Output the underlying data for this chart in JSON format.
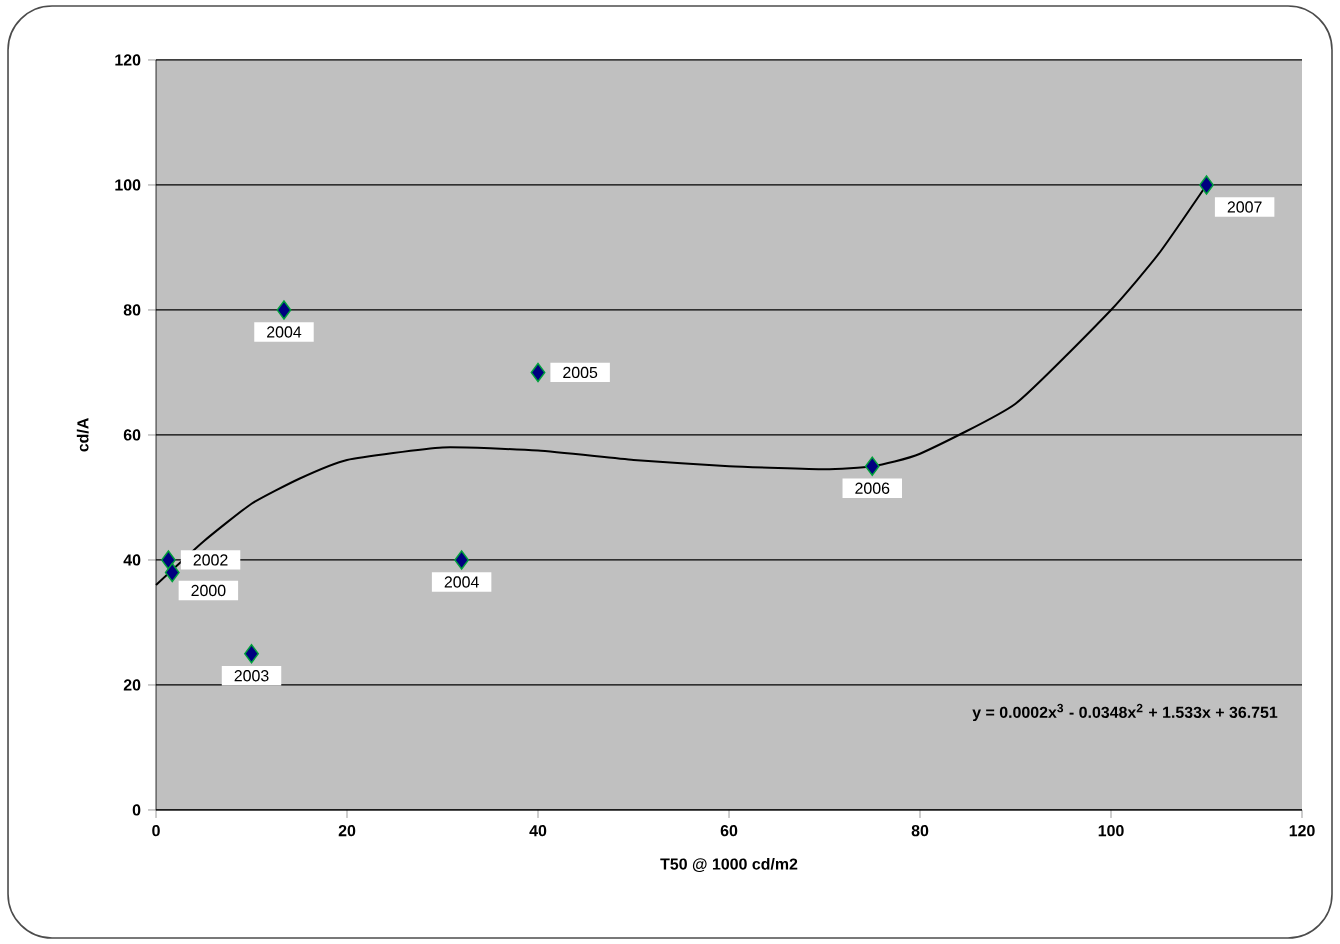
{
  "chart_data": {
    "type": "scatter",
    "xlabel": "T50 @ 1000 cd/m2",
    "ylabel": "cd/A",
    "xlim": [
      0,
      120
    ],
    "ylim": [
      0,
      120
    ],
    "xticks": [
      0,
      20,
      40,
      60,
      80,
      100,
      120
    ],
    "yticks": [
      0,
      20,
      40,
      60,
      80,
      100,
      120
    ],
    "grid": "y",
    "marker": "diamond",
    "series": [
      {
        "type": "scatter",
        "color": "#000080",
        "x": [
          1.3,
          1.7,
          10,
          13.4,
          32,
          40,
          75,
          110
        ],
        "values": [
          40,
          38,
          25,
          80,
          40,
          70,
          55,
          100
        ]
      },
      {
        "type": "line",
        "color": "#000000",
        "marker": "none",
        "x": [
          0,
          5,
          10,
          15,
          20,
          30,
          40,
          50,
          60,
          70,
          75,
          80,
          90,
          100,
          105,
          110
        ],
        "values": [
          36,
          43,
          49,
          53,
          56,
          58,
          57.5,
          56,
          55,
          54.5,
          55,
          57,
          65,
          80,
          89,
          100
        ]
      }
    ],
    "annotations": [
      {
        "text": "2002",
        "x": 1.3,
        "y": 40
      },
      {
        "text": "2000",
        "x": 1.7,
        "y": 38
      },
      {
        "text": "2003",
        "x": 10,
        "y": 25
      },
      {
        "text": "2004",
        "x": 13.4,
        "y": 80
      },
      {
        "text": "2004",
        "x": 32,
        "y": 40
      },
      {
        "text": "2005",
        "x": 40,
        "y": 70
      },
      {
        "text": "2006",
        "x": 75,
        "y": 55
      },
      {
        "text": "2007",
        "x": 110,
        "y": 100
      },
      "y = 0.0002x$^{3}$ - 0.0348x$^{2}$ + 1.533x + 36.751"
    ]
  }
}
